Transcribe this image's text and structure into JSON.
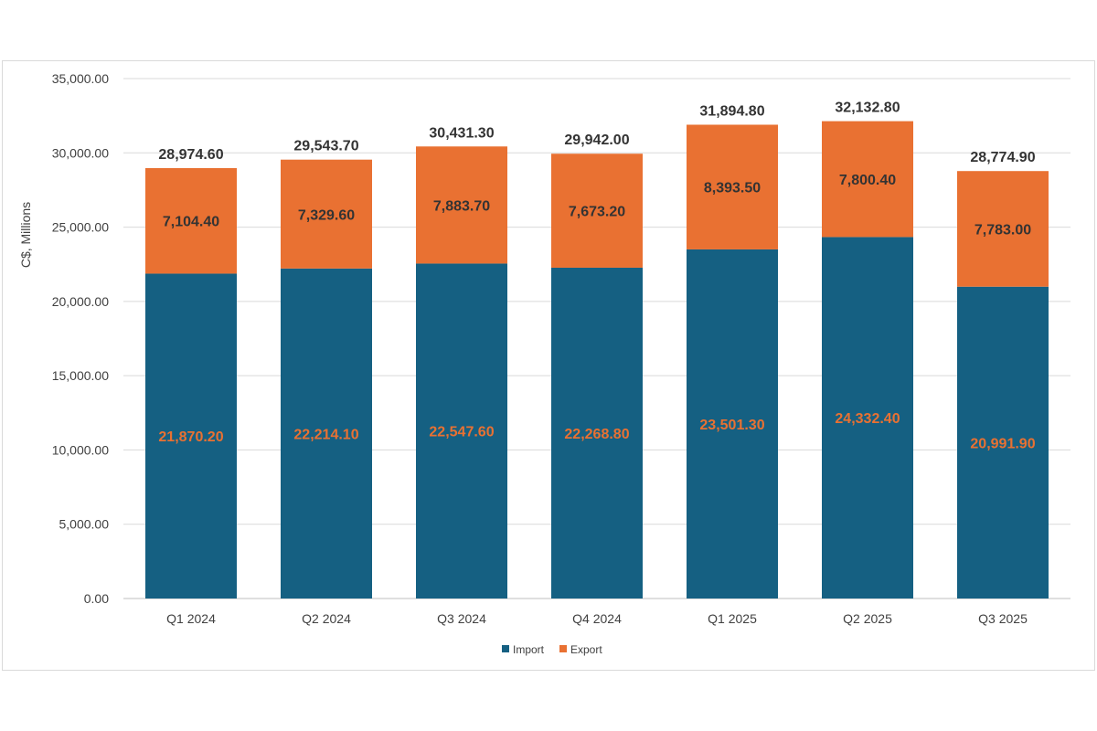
{
  "chart_data": {
    "type": "bar",
    "stacked": true,
    "title": "",
    "xlabel": "",
    "ylabel": "C$, Millions",
    "ylim": [
      0,
      35000
    ],
    "yticks": [
      "0.00",
      "5,000.00",
      "10,000.00",
      "15,000.00",
      "20,000.00",
      "25,000.00",
      "30,000.00",
      "35,000.00"
    ],
    "categories": [
      "Q1 2024",
      "Q2 2024",
      "Q3 2024",
      "Q4 2024",
      "Q1 2025",
      "Q2 2025",
      "Q3 2025"
    ],
    "series": [
      {
        "name": "Import",
        "color": "#156082",
        "label_color": "#E97132",
        "values": [
          21870.2,
          22214.1,
          22547.6,
          22268.8,
          23501.3,
          24332.4,
          20991.9
        ],
        "labels": [
          "21,870.20",
          "22,214.10",
          "22,547.60",
          "22,268.80",
          "23,501.30",
          "24,332.40",
          "20,991.90"
        ]
      },
      {
        "name": "Export",
        "color": "#E97132",
        "label_color": "#333333",
        "values": [
          7104.4,
          7329.6,
          7883.7,
          7673.2,
          8393.5,
          7800.4,
          7783.0
        ],
        "labels": [
          "7,104.40",
          "7,329.60",
          "7,883.70",
          "7,673.20",
          "8,393.50",
          "7,800.40",
          "7,783.00"
        ]
      }
    ],
    "totals": [
      28974.6,
      29543.7,
      30431.3,
      29942.0,
      31894.8,
      32132.8,
      28774.9
    ],
    "total_labels": [
      "28,974.60",
      "29,543.70",
      "30,431.30",
      "29,942.00",
      "31,894.80",
      "32,132.80",
      "28,774.90"
    ],
    "grid": true,
    "gridline_color": "#d9d9d9",
    "legend_position": "bottom"
  }
}
